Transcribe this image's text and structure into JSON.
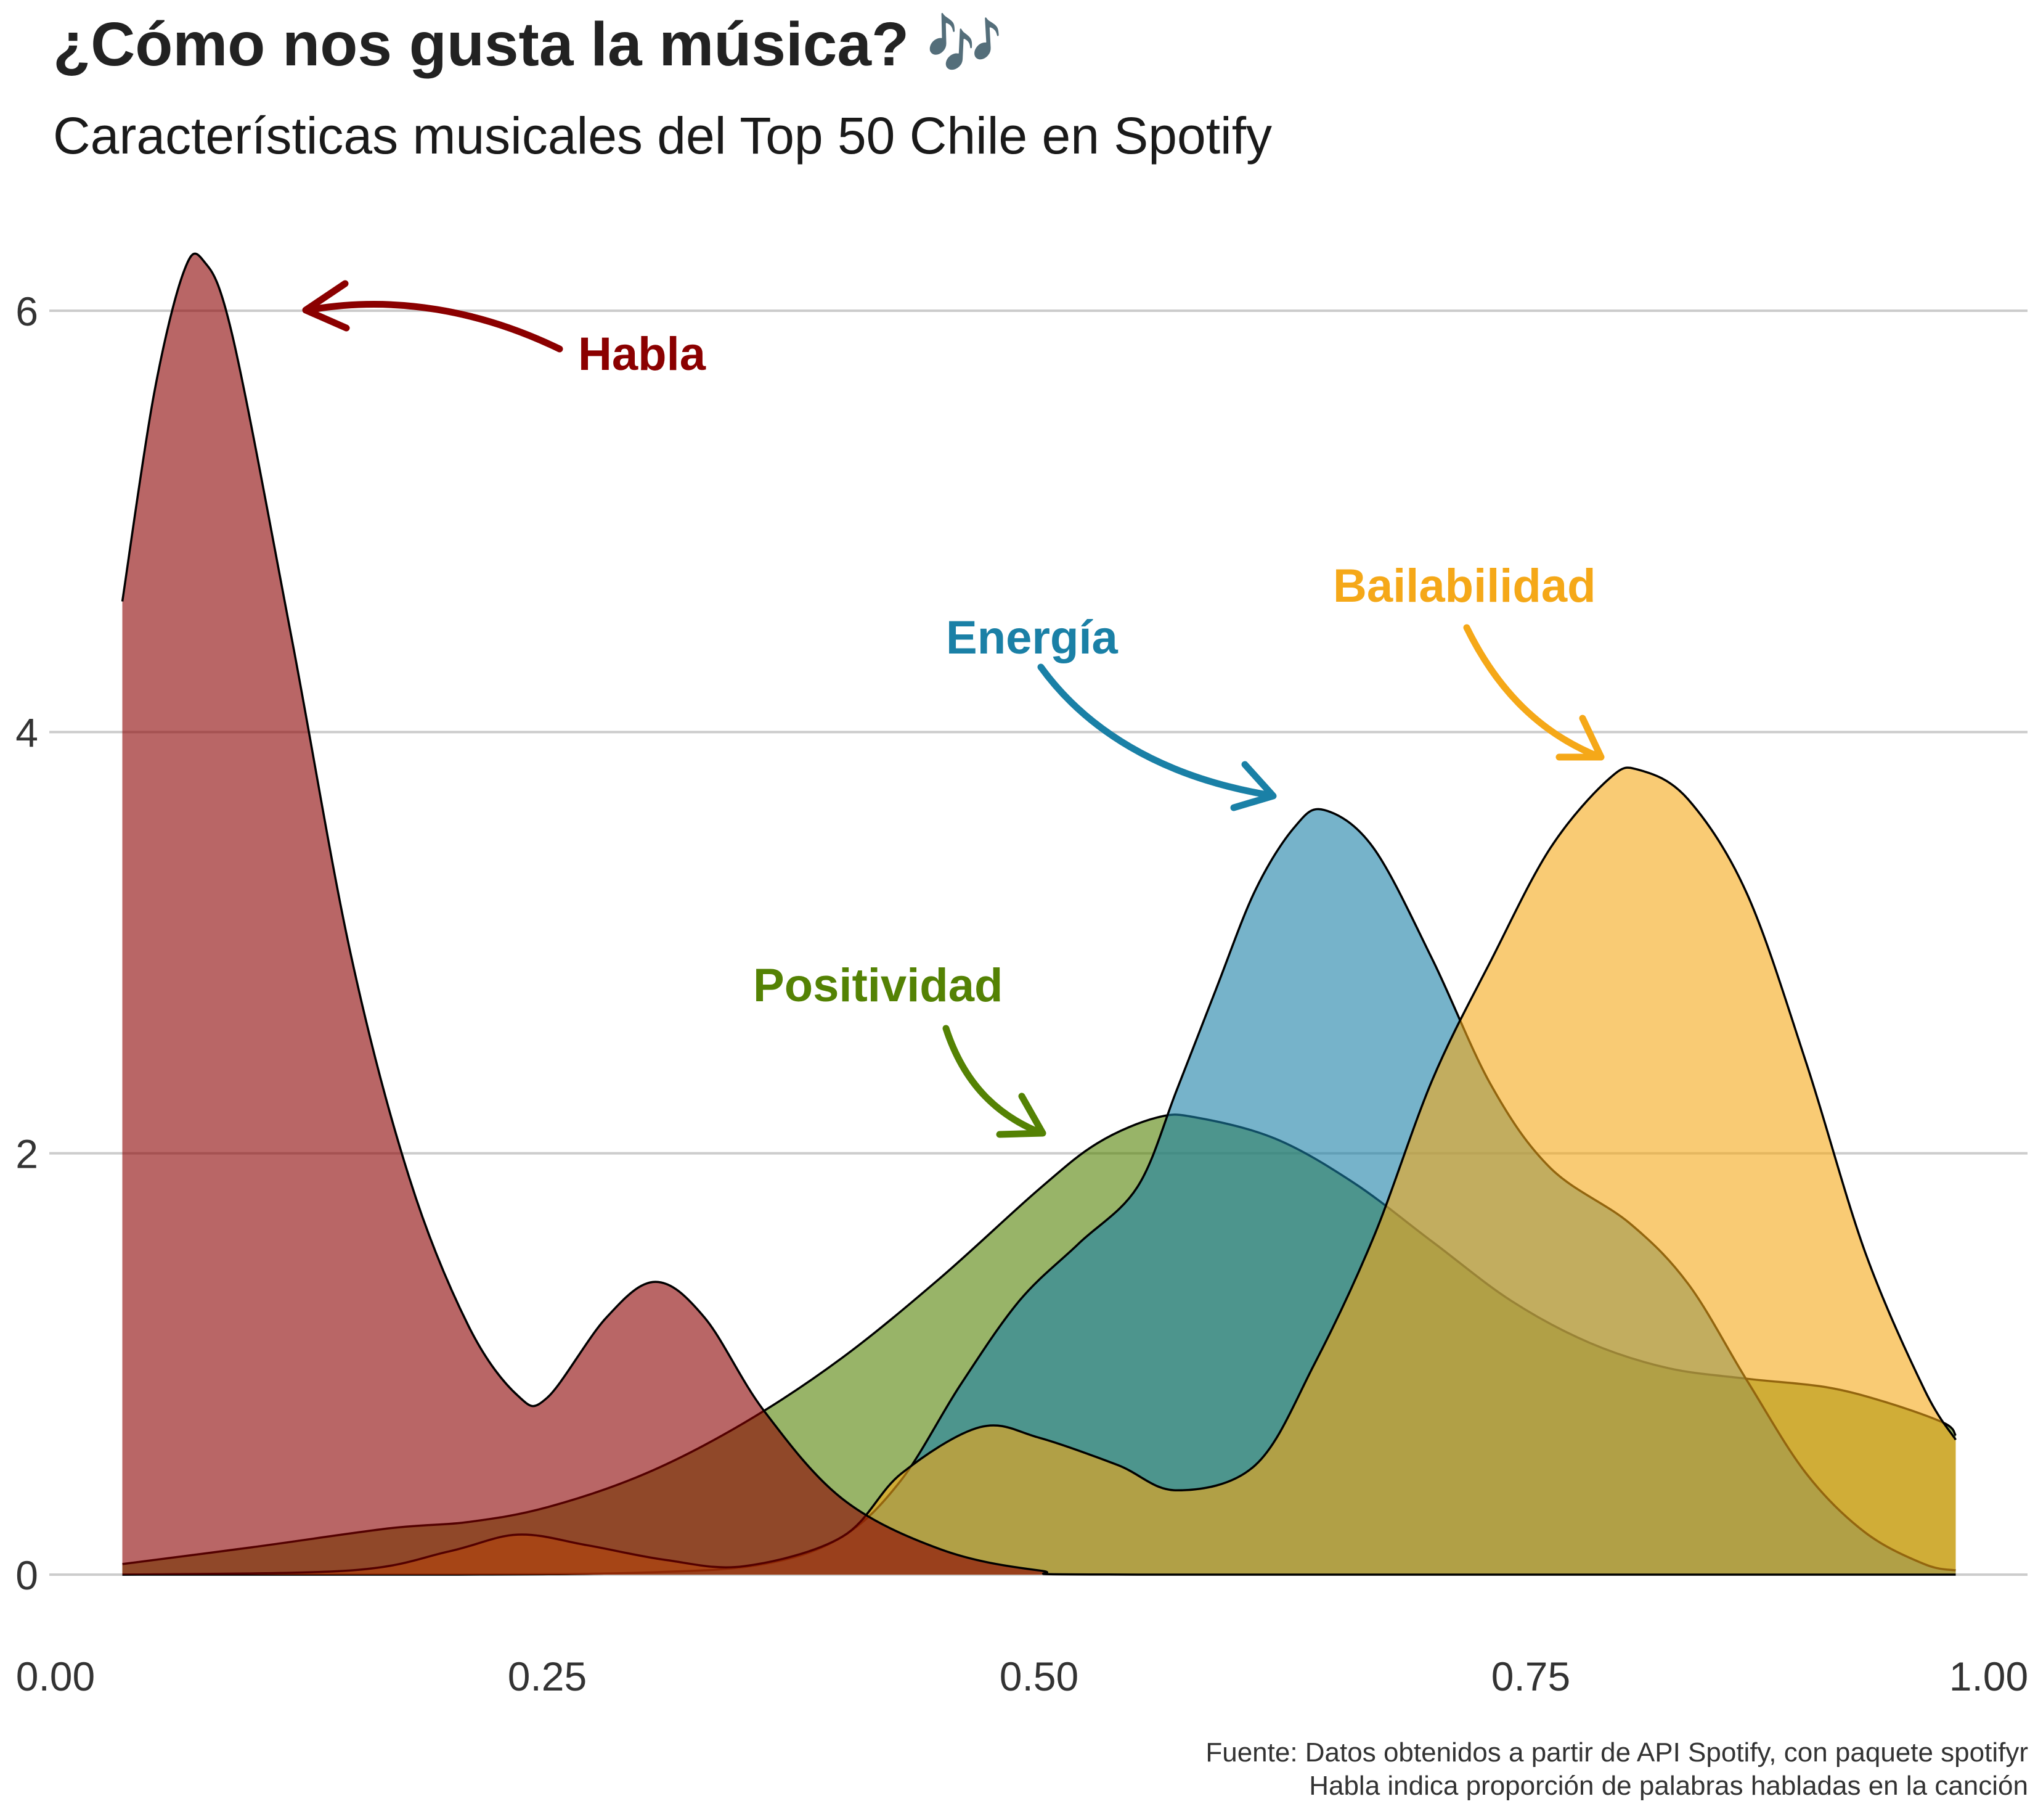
{
  "title": "¿Cómo nos gusta la música? 🎶",
  "subtitle": "Características musicales del Top 50 Chile en Spotify",
  "caption": {
    "line1": "Fuente: Datos obtenidos a partir de API Spotify, con paquete spotifyr",
    "line2": "Habla indica proporción de palabras habladas en la canción"
  },
  "chart_data": {
    "type": "area",
    "xlim": [
      0.0,
      1.0
    ],
    "ylim": [
      0,
      6
    ],
    "x_ticks": [
      "0.00",
      "0.25",
      "0.50",
      "0.75",
      "1.00"
    ],
    "y_ticks": [
      "0",
      "2",
      "4",
      "6"
    ],
    "grid": "horizontal",
    "xlabel": "",
    "ylabel": "",
    "series": [
      {
        "name": "Positividad",
        "color": "#548204",
        "points": [
          [
            0.034,
            0.05
          ],
          [
            0.1,
            0.13
          ],
          [
            0.17,
            0.22
          ],
          [
            0.21,
            0.25
          ],
          [
            0.25,
            0.32
          ],
          [
            0.3,
            0.48
          ],
          [
            0.35,
            0.72
          ],
          [
            0.4,
            1.03
          ],
          [
            0.45,
            1.41
          ],
          [
            0.5,
            1.83
          ],
          [
            0.53,
            2.05
          ],
          [
            0.56,
            2.17
          ],
          [
            0.58,
            2.17
          ],
          [
            0.62,
            2.07
          ],
          [
            0.66,
            1.86
          ],
          [
            0.7,
            1.58
          ],
          [
            0.74,
            1.3
          ],
          [
            0.78,
            1.1
          ],
          [
            0.82,
            0.98
          ],
          [
            0.86,
            0.93
          ],
          [
            0.9,
            0.89
          ],
          [
            0.93,
            0.82
          ],
          [
            0.96,
            0.72
          ],
          [
            0.966,
            0.66
          ]
        ]
      },
      {
        "name": "Energía",
        "color": "#1a80a6",
        "points": [
          [
            0.034,
            0.0
          ],
          [
            0.2,
            0.0
          ],
          [
            0.3,
            0.01
          ],
          [
            0.36,
            0.05
          ],
          [
            0.4,
            0.18
          ],
          [
            0.43,
            0.45
          ],
          [
            0.46,
            0.9
          ],
          [
            0.49,
            1.3
          ],
          [
            0.52,
            1.57
          ],
          [
            0.55,
            1.84
          ],
          [
            0.57,
            2.3
          ],
          [
            0.59,
            2.78
          ],
          [
            0.61,
            3.25
          ],
          [
            0.63,
            3.55
          ],
          [
            0.645,
            3.63
          ],
          [
            0.67,
            3.45
          ],
          [
            0.7,
            2.92
          ],
          [
            0.73,
            2.32
          ],
          [
            0.76,
            1.93
          ],
          [
            0.8,
            1.67
          ],
          [
            0.83,
            1.38
          ],
          [
            0.86,
            0.92
          ],
          [
            0.89,
            0.48
          ],
          [
            0.92,
            0.2
          ],
          [
            0.95,
            0.05
          ],
          [
            0.966,
            0.02
          ]
        ]
      },
      {
        "name": "Bailabilidad",
        "color": "#f5a818",
        "points": [
          [
            0.034,
            0.0
          ],
          [
            0.15,
            0.02
          ],
          [
            0.2,
            0.11
          ],
          [
            0.235,
            0.19
          ],
          [
            0.27,
            0.14
          ],
          [
            0.31,
            0.07
          ],
          [
            0.35,
            0.04
          ],
          [
            0.4,
            0.18
          ],
          [
            0.43,
            0.48
          ],
          [
            0.47,
            0.7
          ],
          [
            0.5,
            0.65
          ],
          [
            0.54,
            0.52
          ],
          [
            0.57,
            0.4
          ],
          [
            0.61,
            0.52
          ],
          [
            0.64,
            1.0
          ],
          [
            0.67,
            1.6
          ],
          [
            0.7,
            2.35
          ],
          [
            0.73,
            2.92
          ],
          [
            0.76,
            3.45
          ],
          [
            0.79,
            3.78
          ],
          [
            0.805,
            3.82
          ],
          [
            0.83,
            3.68
          ],
          [
            0.86,
            3.23
          ],
          [
            0.89,
            2.43
          ],
          [
            0.92,
            1.53
          ],
          [
            0.95,
            0.88
          ],
          [
            0.966,
            0.64
          ]
        ]
      },
      {
        "name": "Habla",
        "color": "#8b0000",
        "points": [
          [
            0.034,
            4.62
          ],
          [
            0.05,
            5.6
          ],
          [
            0.065,
            6.18
          ],
          [
            0.075,
            6.24
          ],
          [
            0.09,
            5.88
          ],
          [
            0.12,
            4.45
          ],
          [
            0.15,
            2.95
          ],
          [
            0.18,
            1.88
          ],
          [
            0.21,
            1.18
          ],
          [
            0.235,
            0.85
          ],
          [
            0.25,
            0.84
          ],
          [
            0.28,
            1.22
          ],
          [
            0.305,
            1.39
          ],
          [
            0.33,
            1.22
          ],
          [
            0.36,
            0.78
          ],
          [
            0.4,
            0.36
          ],
          [
            0.45,
            0.12
          ],
          [
            0.5,
            0.02
          ],
          [
            0.55,
            0.0
          ],
          [
            0.966,
            0.0
          ]
        ]
      }
    ],
    "annotations": [
      {
        "label": "Habla",
        "color": "#8b0000"
      },
      {
        "label": "Energía",
        "color": "#1a80a6"
      },
      {
        "label": "Bailabilidad",
        "color": "#f5a818"
      },
      {
        "label": "Positividad",
        "color": "#548204"
      }
    ]
  }
}
